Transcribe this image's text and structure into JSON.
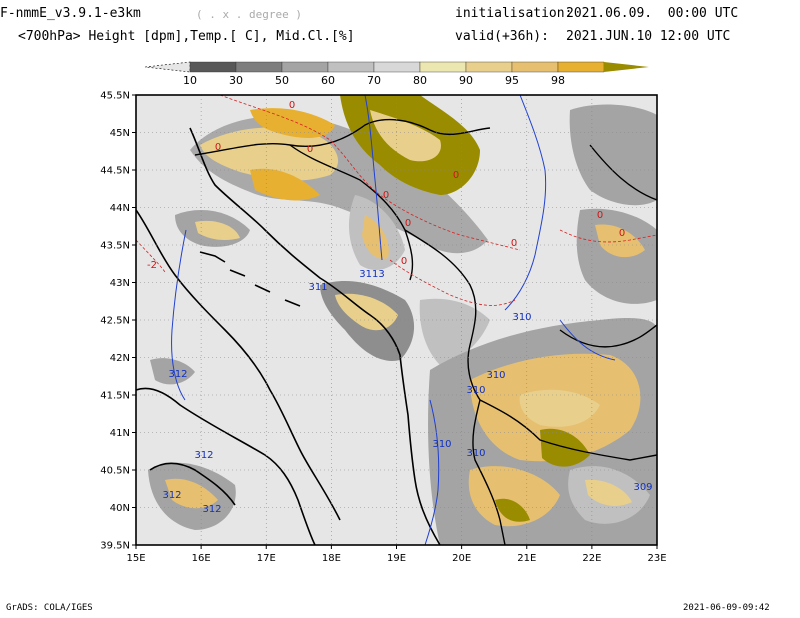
{
  "header": {
    "model": "F-nmmE_v3.9.1-e3km",
    "units_hint": "( . x . degree )",
    "init_label": "initialisation:",
    "init_value": "2021.06.09.  00:00 UTC",
    "subtitle": "<700hPa> Height [dpm],Temp.[ C], Mid.Cl.[%]",
    "valid_label": "valid(+36h):",
    "valid_value": "2021.JUN.10 12:00 UTC"
  },
  "colorbar": {
    "ticks": [
      "10",
      "30",
      "50",
      "60",
      "70",
      "80",
      "90",
      "95",
      "98"
    ],
    "colors": [
      "#585858",
      "#7e7e7e",
      "#a4a4a4",
      "#c0c0c0",
      "#d8d8d8",
      "#ece6b0",
      "#e8d08c",
      "#e6c070",
      "#e8b030",
      "#9a8c00"
    ]
  },
  "axes": {
    "lat_labels": [
      "45.5N",
      "45N",
      "44.5N",
      "44N",
      "43.5N",
      "43N",
      "42.5N",
      "42N",
      "41.5N",
      "41N",
      "40.5N",
      "40N",
      "39.5N"
    ],
    "lon_labels": [
      "15E",
      "16E",
      "17E",
      "18E",
      "19E",
      "20E",
      "21E",
      "22E",
      "23E"
    ]
  },
  "contours": {
    "height_labels": [
      "311",
      "3113",
      "310",
      "310",
      "310",
      "310",
      "310",
      "312",
      "312",
      "312",
      "312",
      "309"
    ],
    "temp_labels": [
      "0",
      "0",
      "0",
      "0",
      "0",
      "0",
      "0",
      "0",
      "0",
      "0",
      "-2"
    ]
  },
  "footer": {
    "left": "GrADS: COLA/IGES",
    "right": "2021-06-09-09:42"
  }
}
